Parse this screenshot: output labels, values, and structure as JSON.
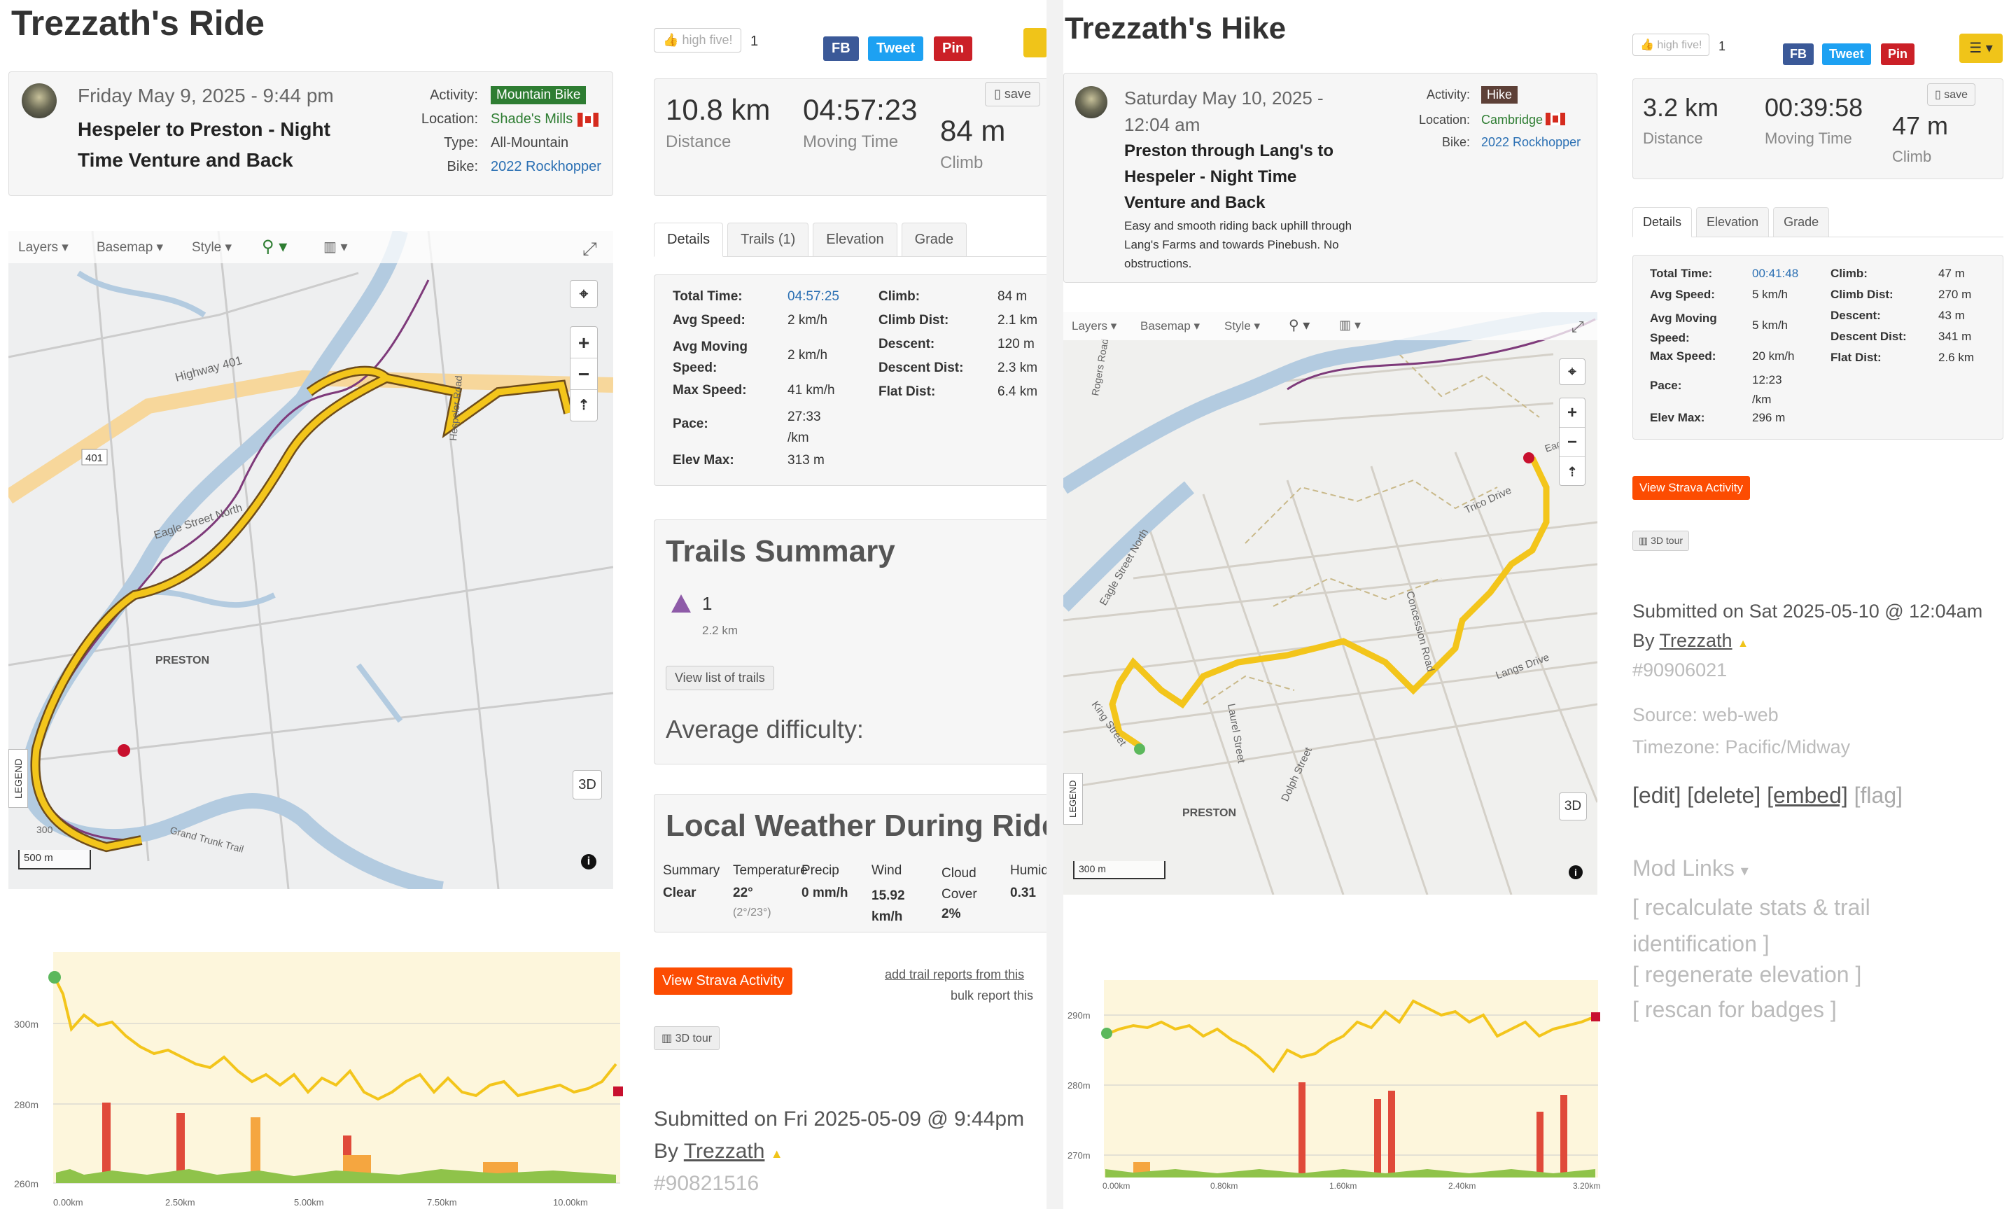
{
  "left": {
    "title": "Trezzath's Ride",
    "date": "Friday May 9, 2025 - 9:44 pm",
    "name": "Hespeler to Preston - Night Time Venture and Back",
    "meta": {
      "activity_label": "Activity:",
      "activity": "Mountain Bike",
      "location_label": "Location:",
      "location": "Shade's Mills",
      "type_label": "Type:",
      "type": "All-Mountain",
      "bike_label": "Bike:",
      "bike": "2022 Rockhopper"
    },
    "high_five": "high five!",
    "high_five_count": "1",
    "fb": "FB",
    "tweet": "Tweet",
    "pin": "Pin",
    "save": "save",
    "stats": [
      {
        "value": "10.8 km",
        "label": "Distance"
      },
      {
        "value": "04:57:23",
        "label": "Moving Time"
      },
      {
        "value": "84 m",
        "label": "Climb"
      }
    ],
    "tabs": [
      "Details",
      "Trails (1)",
      "Elevation",
      "Grade"
    ],
    "details_left": [
      {
        "k": "Total Time:",
        "v": "04:57:25"
      },
      {
        "k": "Avg Speed:",
        "v": "2 km/h"
      },
      {
        "k": "Avg Moving Speed:",
        "v": "2 km/h"
      },
      {
        "k": "Max Speed:",
        "v": "41 km/h"
      },
      {
        "k": "Pace:",
        "v": "27:33 /km"
      },
      {
        "k": "Elev Max:",
        "v": "313 m"
      }
    ],
    "details_right": [
      {
        "k": "Climb:",
        "v": "84 m"
      },
      {
        "k": "Climb Dist:",
        "v": "2.1 km"
      },
      {
        "k": "Descent:",
        "v": "120 m"
      },
      {
        "k": "Descent Dist:",
        "v": "2.3 km"
      },
      {
        "k": "Flat Dist:",
        "v": "6.4 km"
      }
    ],
    "map": {
      "layers": "Layers",
      "basemap": "Basemap",
      "style": "Style",
      "labels": [
        "Highway 401",
        "401",
        "Eagle Street North",
        "PRESTON",
        "Hespeler Road",
        "Grand Trunk Trail",
        "300"
      ],
      "scale": "500 m",
      "three_d": "3D",
      "legend": "LEGEND"
    },
    "trails_summary": {
      "title": "Trails Summary",
      "count": "1",
      "dist": "2.2 km",
      "button": "View list of trails",
      "difficulty": "Average difficulty:"
    },
    "weather": {
      "title": "Local Weather During Ride",
      "headers": [
        "Summary",
        "Temperature",
        "Precip",
        "Wind",
        "Cloud Cover",
        "Humidity"
      ],
      "values": [
        "Clear",
        "22°",
        "0 mm/h",
        "15.92 km/h",
        "2%",
        "0.31"
      ],
      "temp_range": "(2°/23°)"
    },
    "strava": "View Strava Activity",
    "add_reports": "add trail reports from this",
    "bulk_report": "bulk report this",
    "tour": "3D tour",
    "submitted": "Submitted on Fri 2025-05-09 @ 9:44pm",
    "by": "By",
    "user": "Trezzath",
    "id": "#90821516",
    "elev_y": [
      "300m",
      "280m",
      "260m"
    ],
    "elev_x": [
      "0.00km",
      "2.50km",
      "5.00km",
      "7.50km",
      "10.00km"
    ]
  },
  "right": {
    "title": "Trezzath's Hike",
    "date": "Saturday May 10, 2025 - 12:04 am",
    "name": "Preston through Lang's to Hespeler - Night Time Venture and Back",
    "desc": "Easy and smooth riding back uphill through Lang's Farms and towards Pinebush. No obstructions.",
    "meta": {
      "activity_label": "Activity:",
      "activity": "Hike",
      "location_label": "Location:",
      "location": "Cambridge",
      "bike_label": "Bike:",
      "bike": "2022 Rockhopper"
    },
    "high_five": "high five!",
    "high_five_count": "1",
    "fb": "FB",
    "tweet": "Tweet",
    "pin": "Pin",
    "save": "save",
    "stats": [
      {
        "value": "3.2 km",
        "label": "Distance"
      },
      {
        "value": "00:39:58",
        "label": "Moving Time"
      },
      {
        "value": "47 m",
        "label": "Climb"
      }
    ],
    "tabs": [
      "Details",
      "Elevation",
      "Grade"
    ],
    "details_left": [
      {
        "k": "Total Time:",
        "v": "00:41:48"
      },
      {
        "k": "Avg Speed:",
        "v": "5 km/h"
      },
      {
        "k": "Avg Moving Speed:",
        "v": "5 km/h"
      },
      {
        "k": "Max Speed:",
        "v": "20 km/h"
      },
      {
        "k": "Pace:",
        "v": "12:23 /km"
      },
      {
        "k": "Elev Max:",
        "v": "296 m"
      }
    ],
    "details_right": [
      {
        "k": "Climb:",
        "v": "47 m"
      },
      {
        "k": "Climb Dist:",
        "v": "270 m"
      },
      {
        "k": "Descent:",
        "v": "43 m"
      },
      {
        "k": "Descent Dist:",
        "v": "341 m"
      },
      {
        "k": "Flat Dist:",
        "v": "2.6 km"
      }
    ],
    "map": {
      "layers": "Layers",
      "basemap": "Basemap",
      "style": "Style",
      "labels": [
        "Eagle Street North",
        "Laurel Street",
        "Concession Road",
        "Trico Drive",
        "Langs Drive",
        "King Street",
        "Dolph Street",
        "PRESTON",
        "Rogers Road",
        "Eagle"
      ],
      "scale": "300 m",
      "three_d": "3D",
      "legend": "LEGEND"
    },
    "strava": "View Strava Activity",
    "tour": "3D tour",
    "submitted": "Submitted on Sat 2025-05-10 @ 12:04am",
    "by": "By",
    "user": "Trezzath",
    "id": "#90906021",
    "source": "Source: web-web",
    "timezone": "Timezone: Pacific/Midway",
    "edit": "[edit]",
    "delete": "[delete]",
    "embed": "[embed]",
    "flag": "[flag]",
    "mod_links": "Mod Links",
    "mod": [
      "[ recalculate stats & trail identification ]",
      "[ regenerate elevation ]",
      "[ rescan for badges ]"
    ],
    "elev_y": [
      "290m",
      "280m",
      "270m"
    ],
    "elev_x": [
      "0.00km",
      "0.80km",
      "1.60km",
      "2.40km",
      "3.20km"
    ]
  }
}
